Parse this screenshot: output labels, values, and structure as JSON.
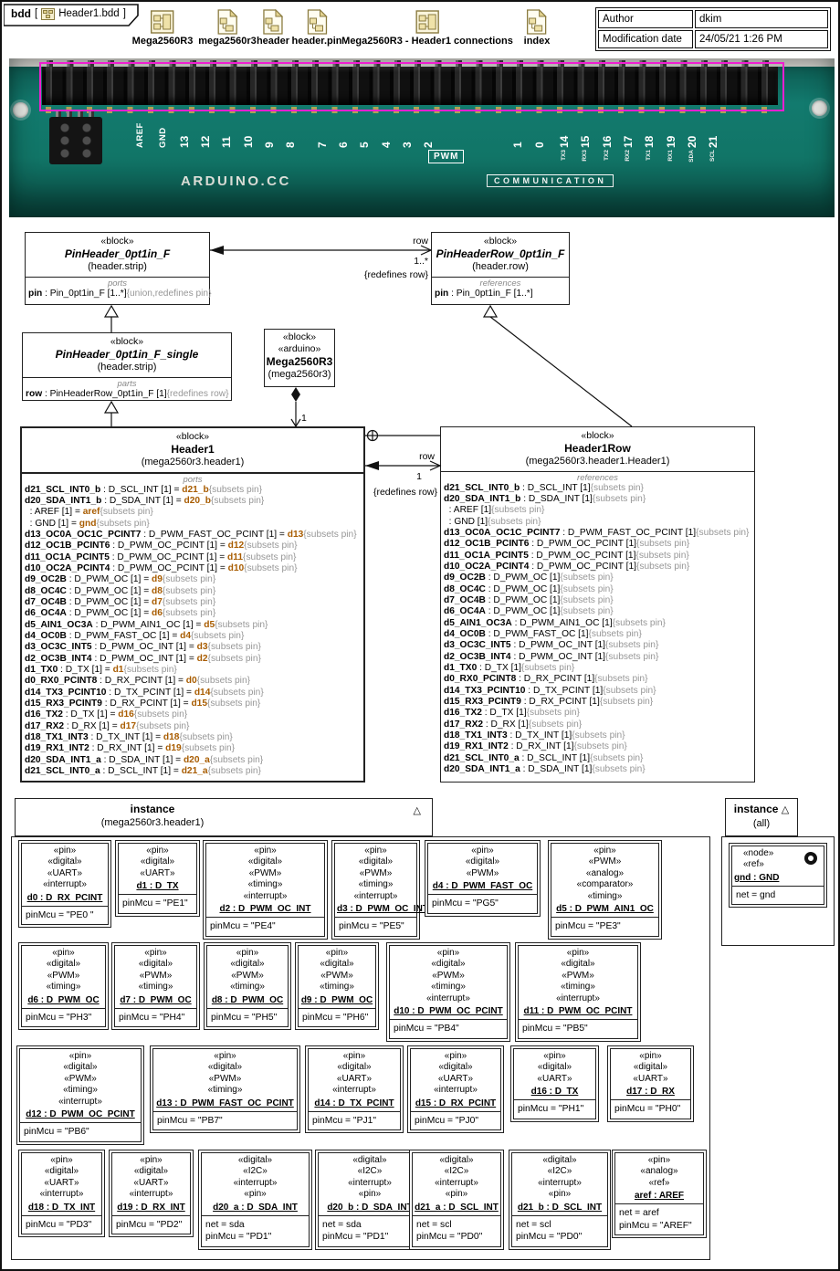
{
  "tab": {
    "prefix": "bdd",
    "open_bracket": "[",
    "diagram_name": "Header1.bdd",
    "close_bracket": "]"
  },
  "toolbar": {
    "items": [
      {
        "label": "Mega2560R3",
        "icon": "internal-diagram"
      },
      {
        "label": "mega2560r3",
        "icon": "model-document"
      },
      {
        "label": "header",
        "icon": "model-document"
      },
      {
        "label": "header.pin",
        "icon": "model-document"
      },
      {
        "label": "Mega2560R3 - Header1 connections",
        "icon": "internal-diagram"
      },
      {
        "label": "index",
        "icon": "model-document"
      }
    ]
  },
  "info_table": {
    "rows": [
      [
        "Author",
        "dkim"
      ],
      [
        "Modification date",
        "24/05/21 1:26 PM"
      ]
    ]
  },
  "board": {
    "aref_label": "AREF",
    "gnd_label": "GND",
    "digital_groups": [
      [
        "13",
        "12",
        "11",
        "10",
        "9",
        "8"
      ],
      [
        "7",
        "6",
        "5",
        "4",
        "3",
        "2"
      ],
      [
        "1",
        "0"
      ]
    ],
    "comm_pins": [
      {
        "num": "14",
        "sub": "TX3"
      },
      {
        "num": "15",
        "sub": "RX3"
      },
      {
        "num": "16",
        "sub": "TX2"
      },
      {
        "num": "17",
        "sub": "RX2"
      },
      {
        "num": "18",
        "sub": "TX1"
      },
      {
        "num": "19",
        "sub": "RX1"
      },
      {
        "num": "20",
        "sub": "SDA"
      },
      {
        "num": "21",
        "sub": "SCL"
      }
    ],
    "pwm_label": "PWM",
    "communication_label": "COMMUNICATION",
    "brand_text": "ARDUINO.CC"
  },
  "blocks": {
    "pinheader": {
      "stereotype": "«block»",
      "name": "PinHeader_0pt1in_F",
      "qualifier": "(header.strip)",
      "compartment_label": "ports",
      "features": [
        {
          "name": "pin",
          "rest": " : Pin_0pt1in_F [1..*]",
          "note": "{union,redefines pin}"
        }
      ]
    },
    "pinheaderrow": {
      "stereotype": "«block»",
      "name": "PinHeaderRow_0pt1in_F",
      "qualifier": "(header.row)",
      "compartment_label": "references",
      "features": [
        {
          "name": "pin",
          "rest": " : Pin_0pt1in_F [1..*]",
          "note": ""
        }
      ]
    },
    "pinheadersingle": {
      "stereotype": "«block»",
      "name": "PinHeader_0pt1in_F_single",
      "qualifier": "(header.strip)",
      "compartment_label": "parts",
      "features": [
        {
          "name": "row",
          "rest": " : PinHeaderRow_0pt1in_F [1]",
          "note": "{redefines row}"
        }
      ]
    },
    "mega": {
      "stereotypes": [
        "«block»",
        "«arduino»"
      ],
      "name": "Mega2560R3",
      "qualifier": "(mega2560r3)"
    }
  },
  "connectors": {
    "assoc_top": {
      "name": "row",
      "mult": "1..*",
      "note": "{redefines row}"
    },
    "assoc_mid": {
      "name": "row",
      "mult": "1",
      "note": "{redefines row}"
    },
    "comp_mult": "1"
  },
  "header1": {
    "stereotype": "«block»",
    "name": "Header1",
    "qualifier": "(mega2560r3.header1)",
    "compartment_label": "ports",
    "mult_label": "[1]",
    "subsets_note": "{subsets pin}",
    "ports": [
      {
        "n": "d21_SCL_INT0_b",
        "t": "D_SCL_INT",
        "v": "d21_b"
      },
      {
        "n": "d20_SDA_INT1_b",
        "t": "D_SDA_INT",
        "v": "d20_b"
      },
      {
        "n": "",
        "t": "AREF",
        "v": "aref"
      },
      {
        "n": "",
        "t": "GND",
        "v": "gnd"
      },
      {
        "n": "d13_OC0A_OC1C_PCINT7",
        "t": "D_PWM_FAST_OC_PCINT",
        "v": "d13"
      },
      {
        "n": "d12_OC1B_PCINT6",
        "t": "D_PWM_OC_PCINT",
        "v": "d12"
      },
      {
        "n": "d11_OC1A_PCINT5",
        "t": "D_PWM_OC_PCINT",
        "v": "d11"
      },
      {
        "n": "d10_OC2A_PCINT4",
        "t": "D_PWM_OC_PCINT",
        "v": "d10"
      },
      {
        "n": "d9_OC2B",
        "t": "D_PWM_OC",
        "v": "d9"
      },
      {
        "n": "d8_OC4C",
        "t": "D_PWM_OC",
        "v": "d8"
      },
      {
        "n": "d7_OC4B",
        "t": "D_PWM_OC",
        "v": "d7"
      },
      {
        "n": "d6_OC4A",
        "t": "D_PWM_OC",
        "v": "d6"
      },
      {
        "n": "d5_AIN1_OC3A",
        "t": "D_PWM_AIN1_OC",
        "v": "d5"
      },
      {
        "n": "d4_OC0B",
        "t": "D_PWM_FAST_OC",
        "v": "d4"
      },
      {
        "n": "d3_OC3C_INT5",
        "t": "D_PWM_OC_INT",
        "v": "d3"
      },
      {
        "n": "d2_OC3B_INT4",
        "t": "D_PWM_OC_INT",
        "v": "d2"
      },
      {
        "n": "d1_TX0",
        "t": "D_TX",
        "v": "d1"
      },
      {
        "n": "d0_RX0_PCINT8",
        "t": "D_RX_PCINT",
        "v": "d0"
      },
      {
        "n": "d14_TX3_PCINT10",
        "t": "D_TX_PCINT",
        "v": "d14"
      },
      {
        "n": "d15_RX3_PCINT9",
        "t": "D_RX_PCINT",
        "v": "d15"
      },
      {
        "n": "d16_TX2",
        "t": "D_TX",
        "v": "d16"
      },
      {
        "n": "d17_RX2",
        "t": "D_RX",
        "v": "d17"
      },
      {
        "n": "d18_TX1_INT3",
        "t": "D_TX_INT",
        "v": "d18"
      },
      {
        "n": "d19_RX1_INT2",
        "t": "D_RX_INT",
        "v": "d19"
      },
      {
        "n": "d20_SDA_INT1_a",
        "t": "D_SDA_INT",
        "v": "d20_a"
      },
      {
        "n": "d21_SCL_INT0_a",
        "t": "D_SCL_INT",
        "v": "d21_a"
      }
    ]
  },
  "header1row": {
    "stereotype": "«block»",
    "name": "Header1Row",
    "qualifier": "(mega2560r3.header1.Header1)",
    "compartment_label": "references",
    "mult_label": "[1]",
    "subsets_note": "{subsets pin}",
    "refs": [
      {
        "n": "d21_SCL_INT0_b",
        "t": "D_SCL_INT"
      },
      {
        "n": "d20_SDA_INT1_b",
        "t": "D_SDA_INT"
      },
      {
        "n": "",
        "t": "AREF"
      },
      {
        "n": "",
        "t": "GND"
      },
      {
        "n": "d13_OC0A_OC1C_PCINT7",
        "t": "D_PWM_FAST_OC_PCINT"
      },
      {
        "n": "d12_OC1B_PCINT6",
        "t": "D_PWM_OC_PCINT"
      },
      {
        "n": "d11_OC1A_PCINT5",
        "t": "D_PWM_OC_PCINT"
      },
      {
        "n": "d10_OC2A_PCINT4",
        "t": "D_PWM_OC_PCINT"
      },
      {
        "n": "d9_OC2B",
        "t": "D_PWM_OC"
      },
      {
        "n": "d8_OC4C",
        "t": "D_PWM_OC"
      },
      {
        "n": "d7_OC4B",
        "t": "D_PWM_OC"
      },
      {
        "n": "d6_OC4A",
        "t": "D_PWM_OC"
      },
      {
        "n": "d5_AIN1_OC3A",
        "t": "D_PWM_AIN1_OC"
      },
      {
        "n": "d4_OC0B",
        "t": "D_PWM_FAST_OC"
      },
      {
        "n": "d3_OC3C_INT5",
        "t": "D_PWM_OC_INT"
      },
      {
        "n": "d2_OC3B_INT4",
        "t": "D_PWM_OC_INT"
      },
      {
        "n": "d1_TX0",
        "t": "D_TX"
      },
      {
        "n": "d0_RX0_PCINT8",
        "t": "D_RX_PCINT"
      },
      {
        "n": "d14_TX3_PCINT10",
        "t": "D_TX_PCINT"
      },
      {
        "n": "d15_RX3_PCINT9",
        "t": "D_RX_PCINT"
      },
      {
        "n": "d16_TX2",
        "t": "D_TX"
      },
      {
        "n": "d17_RX2",
        "t": "D_RX"
      },
      {
        "n": "d18_TX1_INT3",
        "t": "D_TX_INT"
      },
      {
        "n": "d19_RX1_INT2",
        "t": "D_RX_INT"
      },
      {
        "n": "d21_SCL_INT0_a",
        "t": "D_SCL_INT"
      },
      {
        "n": "d20_SDA_INT1_a",
        "t": "D_SDA_INT"
      }
    ]
  },
  "instance_main": {
    "title": "instance",
    "qualifier": "(mega2560r3.header1)",
    "collapse_icon": "△",
    "rows": [
      [
        {
          "stereotypes": [
            "«pin»",
            "«digital»",
            "«UART»",
            "«interrupt»"
          ],
          "name": "d0 : D_RX_PCINT",
          "attrs": [
            "pinMcu = \"PE0 \""
          ]
        },
        {
          "stereotypes": [
            "«pin»",
            "«digital»",
            "«UART»"
          ],
          "name": "d1 : D_TX",
          "attrs": [
            "pinMcu = \"PE1\""
          ]
        },
        {
          "stereotypes": [
            "«pin»",
            "«digital»",
            "«PWM»",
            "«timing»",
            "«interrupt»"
          ],
          "name": "d2 : D_PWM_OC_INT",
          "attrs": [
            "pinMcu = \"PE4\""
          ]
        },
        {
          "stereotypes": [
            "«pin»",
            "«digital»",
            "«PWM»",
            "«timing»",
            "«interrupt»"
          ],
          "name": "d3 : D_PWM_OC_INT",
          "attrs": [
            "pinMcu = \"PE5\""
          ]
        },
        {
          "stereotypes": [
            "«pin»",
            "«digital»",
            "«PWM»"
          ],
          "name": "d4 : D_PWM_FAST_OC",
          "attrs": [
            "pinMcu = \"PG5\""
          ]
        },
        {
          "stereotypes": [
            "«pin»",
            "«PWM»",
            "«analog»",
            "«comparator»",
            "«timing»"
          ],
          "name": "d5 : D_PWM_AIN1_OC",
          "attrs": [
            "pinMcu = \"PE3\""
          ]
        }
      ],
      [
        {
          "stereotypes": [
            "«pin»",
            "«digital»",
            "«PWM»",
            "«timing»"
          ],
          "name": "d6 : D_PWM_OC",
          "attrs": [
            "pinMcu = \"PH3\""
          ]
        },
        {
          "stereotypes": [
            "«pin»",
            "«digital»",
            "«PWM»",
            "«timing»"
          ],
          "name": "d7 : D_PWM_OC",
          "attrs": [
            "pinMcu = \"PH4\""
          ]
        },
        {
          "stereotypes": [
            "«pin»",
            "«digital»",
            "«PWM»",
            "«timing»"
          ],
          "name": "d8 : D_PWM_OC",
          "attrs": [
            "pinMcu = \"PH5\""
          ]
        },
        {
          "stereotypes": [
            "«pin»",
            "«digital»",
            "«PWM»",
            "«timing»"
          ],
          "name": "d9 : D_PWM_OC",
          "attrs": [
            "pinMcu = \"PH6\""
          ]
        },
        {
          "stereotypes": [
            "«pin»",
            "«digital»",
            "«PWM»",
            "«timing»",
            "«interrupt»"
          ],
          "name": "d10 : D_PWM_OC_PCINT",
          "attrs": [
            "pinMcu = \"PB4\""
          ]
        },
        {
          "stereotypes": [
            "«pin»",
            "«digital»",
            "«PWM»",
            "«timing»",
            "«interrupt»"
          ],
          "name": "d11 : D_PWM_OC_PCINT",
          "attrs": [
            "pinMcu = \"PB5\""
          ]
        }
      ],
      [
        {
          "stereotypes": [
            "«pin»",
            "«digital»",
            "«PWM»",
            "«timing»",
            "«interrupt»"
          ],
          "name": "d12 : D_PWM_OC_PCINT",
          "attrs": [
            "pinMcu = \"PB6\""
          ]
        },
        {
          "stereotypes": [
            "«pin»",
            "«digital»",
            "«PWM»",
            "«timing»"
          ],
          "name": "d13 : D_PWM_FAST_OC_PCINT",
          "attrs": [
            "pinMcu = \"PB7\""
          ]
        },
        {
          "stereotypes": [
            "«pin»",
            "«digital»",
            "«UART»",
            "«interrupt»"
          ],
          "name": "d14 : D_TX_PCINT",
          "attrs": [
            "pinMcu = \"PJ1\""
          ]
        },
        {
          "stereotypes": [
            "«pin»",
            "«digital»",
            "«UART»",
            "«interrupt»"
          ],
          "name": "d15 : D_RX_PCINT",
          "attrs": [
            "pinMcu = \"PJ0\""
          ]
        },
        {
          "stereotypes": [
            "«pin»",
            "«digital»",
            "«UART»"
          ],
          "name": "d16 : D_TX",
          "attrs": [
            "pinMcu = \"PH1\""
          ]
        },
        {
          "stereotypes": [
            "«pin»",
            "«digital»",
            "«UART»"
          ],
          "name": "d17 : D_RX",
          "attrs": [
            "pinMcu = \"PH0\""
          ]
        }
      ],
      [
        {
          "stereotypes": [
            "«pin»",
            "«digital»",
            "«UART»",
            "«interrupt»"
          ],
          "name": "d18 : D_TX_INT",
          "attrs": [
            "pinMcu = \"PD3\""
          ]
        },
        {
          "stereotypes": [
            "«pin»",
            "«digital»",
            "«UART»",
            "«interrupt»"
          ],
          "name": "d19 : D_RX_INT",
          "attrs": [
            "pinMcu = \"PD2\""
          ]
        },
        {
          "stereotypes": [
            "«digital»",
            "«I2C»",
            "«interrupt»",
            "«pin»"
          ],
          "name": "d20_a : D_SDA_INT",
          "attrs": [
            "net = sda",
            "pinMcu = \"PD1\""
          ]
        },
        {
          "stereotypes": [
            "«digital»",
            "«I2C»",
            "«interrupt»",
            "«pin»"
          ],
          "name": "d20_b : D_SDA_INT",
          "attrs": [
            "net = sda",
            "pinMcu = \"PD1\""
          ]
        },
        {
          "stereotypes": [
            "«digital»",
            "«I2C»",
            "«interrupt»",
            "«pin»"
          ],
          "name": "d21_a : D_SCL_INT",
          "attrs": [
            "net = scl",
            "pinMcu = \"PD0\""
          ]
        },
        {
          "stereotypes": [
            "«digital»",
            "«I2C»",
            "«interrupt»",
            "«pin»"
          ],
          "name": "d21_b : D_SCL_INT",
          "attrs": [
            "net = scl",
            "pinMcu = \"PD0\""
          ]
        },
        {
          "stereotypes": [
            "«pin»",
            "«analog»",
            "«ref»"
          ],
          "name": "aref : AREF",
          "attrs": [
            "net = aref",
            "pinMcu = \"AREF\""
          ]
        }
      ]
    ]
  },
  "instance_all": {
    "title": "instance",
    "qualifier": "(all)",
    "collapse_icon": "△",
    "node": {
      "stereotypes": [
        "«node»",
        "«ref»"
      ],
      "name": "gnd : GND",
      "attrs": [
        "net = gnd"
      ],
      "icon": "ring"
    }
  }
}
